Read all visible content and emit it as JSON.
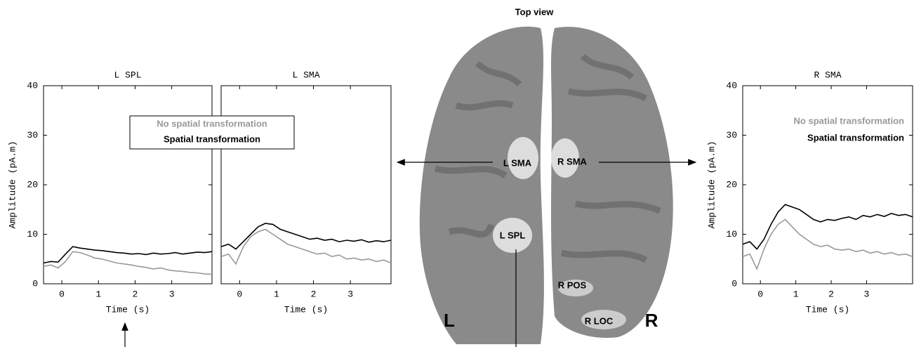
{
  "chart_data": [
    {
      "type": "line",
      "title": "L SPL",
      "xlabel": "Time (s)",
      "ylabel": "Amplitude (pA.m)",
      "x": [
        -0.5,
        -0.3,
        -0.1,
        0.1,
        0.3,
        0.5,
        0.7,
        0.9,
        1.1,
        1.3,
        1.5,
        1.7,
        1.9,
        2.1,
        2.3,
        2.5,
        2.7,
        2.9,
        3.1,
        3.3,
        3.5,
        3.7,
        3.9,
        4.1
      ],
      "series": [
        {
          "color": "#999999",
          "values": [
            3.5,
            3.8,
            3.2,
            4.5,
            6.5,
            6.3,
            5.8,
            5.2,
            5.0,
            4.6,
            4.2,
            4.0,
            3.8,
            3.5,
            3.3,
            3.0,
            3.2,
            2.8,
            2.6,
            2.5,
            2.3,
            2.2,
            2.0,
            1.9
          ]
        },
        {
          "color": "#000000",
          "values": [
            4.2,
            4.5,
            4.4,
            6.0,
            7.5,
            7.2,
            7.0,
            6.8,
            6.7,
            6.5,
            6.3,
            6.2,
            6.0,
            6.1,
            5.9,
            6.2,
            6.0,
            6.1,
            6.3,
            6.0,
            6.2,
            6.4,
            6.3,
            6.5
          ]
        }
      ],
      "xlim": [
        -0.5,
        4.1
      ],
      "xticks": [
        0,
        1,
        2,
        3
      ],
      "ylim": [
        0,
        40
      ],
      "yticks": [
        0,
        10,
        20,
        30,
        40
      ]
    },
    {
      "type": "line",
      "title": "L SMA",
      "xlabel": "Time (s)",
      "x": [
        -0.5,
        -0.3,
        -0.1,
        0.1,
        0.3,
        0.5,
        0.7,
        0.9,
        1.1,
        1.3,
        1.5,
        1.7,
        1.9,
        2.1,
        2.3,
        2.5,
        2.7,
        2.9,
        3.1,
        3.3,
        3.5,
        3.7,
        3.9,
        4.1
      ],
      "series": [
        {
          "name": "No spatial transformation",
          "color": "#999999",
          "values": [
            5.5,
            6.0,
            4.0,
            7.5,
            9.5,
            10.5,
            11.0,
            10.0,
            9.0,
            8.0,
            7.5,
            7.0,
            6.5,
            6.0,
            6.2,
            5.5,
            5.8,
            5.0,
            5.2,
            4.8,
            5.0,
            4.5,
            4.8,
            4.2
          ]
        },
        {
          "name": "Spatial transformation",
          "color": "#000000",
          "values": [
            7.5,
            8.0,
            7.0,
            8.5,
            10.0,
            11.5,
            12.2,
            12.0,
            11.0,
            10.5,
            10.0,
            9.5,
            9.0,
            9.2,
            8.8,
            9.0,
            8.5,
            8.8,
            8.6,
            8.9,
            8.4,
            8.7,
            8.5,
            8.8
          ]
        }
      ],
      "xlim": [
        -0.5,
        4.1
      ],
      "xticks": [
        0,
        1,
        2,
        3
      ],
      "ylim": [
        0,
        40
      ],
      "legend": "upper-left",
      "legend_frame": true
    },
    {
      "type": "line",
      "title": "R SMA",
      "xlabel": "Time (s)",
      "ylabel": "Amplitude (pA.m)",
      "x": [
        -0.5,
        -0.3,
        -0.1,
        0.1,
        0.3,
        0.5,
        0.7,
        0.9,
        1.1,
        1.3,
        1.5,
        1.7,
        1.9,
        2.1,
        2.3,
        2.5,
        2.7,
        2.9,
        3.1,
        3.3,
        3.5,
        3.7,
        3.9,
        4.1,
        4.3
      ],
      "series": [
        {
          "name": "No spatial transformation",
          "color": "#999999",
          "values": [
            5.5,
            6.0,
            3.0,
            7.0,
            10.0,
            12.0,
            13.0,
            11.5,
            10.0,
            9.0,
            8.0,
            7.5,
            7.8,
            7.0,
            6.8,
            7.0,
            6.5,
            6.8,
            6.2,
            6.5,
            6.0,
            6.3,
            5.8,
            6.0,
            5.5
          ]
        },
        {
          "name": "Spatial transformation",
          "color": "#000000",
          "values": [
            8.0,
            8.5,
            7.0,
            9.0,
            12.0,
            14.5,
            16.0,
            15.5,
            15.0,
            14.0,
            13.0,
            12.5,
            13.0,
            12.8,
            13.2,
            13.5,
            13.0,
            13.8,
            13.5,
            14.0,
            13.6,
            14.2,
            13.8,
            14.0,
            13.5
          ]
        }
      ],
      "xlim": [
        -0.5,
        4.3
      ],
      "xticks": [
        0,
        1,
        2,
        3
      ],
      "ylim": [
        0,
        40
      ],
      "yticks": [
        0,
        10,
        20,
        30,
        40
      ],
      "legend": "upper-right",
      "legend_frame": false
    }
  ],
  "brain": {
    "title": "Top view",
    "left": "L",
    "right": "R",
    "regions": [
      "L SMA",
      "R SMA",
      "L SPL",
      "R POS",
      "R LOC"
    ]
  }
}
